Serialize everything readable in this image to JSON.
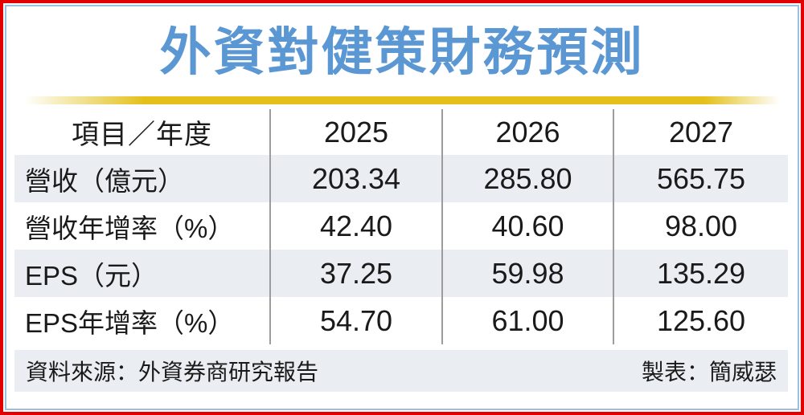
{
  "title": "外資對健策財務預測",
  "table": {
    "header": [
      "項目／年度",
      "2025",
      "2026",
      "2027"
    ],
    "rows": [
      {
        "label": "營收（億元）",
        "values": [
          "203.34",
          "285.80",
          "565.75"
        ]
      },
      {
        "label": "營收年增率（%）",
        "values": [
          "42.40",
          "40.60",
          "98.00"
        ]
      },
      {
        "label": "EPS（元）",
        "values": [
          "37.25",
          "59.98",
          "135.29"
        ]
      },
      {
        "label": "EPS年增率（%）",
        "values": [
          "54.70",
          "61.00",
          "125.60"
        ]
      }
    ]
  },
  "footer": {
    "source": "資料來源：外資券商研究報告",
    "credit": "製表：簡威瑟"
  },
  "colors": {
    "title_blue": "#5B97D3",
    "underline_gold": "#E3C01A",
    "border_red": "#E30000",
    "border_light_blue": "#9DBFDE",
    "stripe_bg": "#EAEEF2",
    "divider_gray": "#9C9C9C"
  },
  "chart_data": {
    "type": "table",
    "title": "外資對健策財務預測",
    "columns": [
      "項目／年度",
      "2025",
      "2026",
      "2027"
    ],
    "rows": [
      [
        "營收（億元）",
        203.34,
        285.8,
        565.75
      ],
      [
        "營收年增率（%）",
        42.4,
        40.6,
        98.0
      ],
      [
        "EPS（元）",
        37.25,
        59.98,
        135.29
      ],
      [
        "EPS年增率（%）",
        54.7,
        61.0,
        125.6
      ]
    ],
    "source_note": "資料來源：外資券商研究報告",
    "credit_note": "製表：簡威瑟",
    "layout": {
      "striped_rows": [
        0,
        2
      ],
      "column_dividers": true,
      "legend": "none"
    }
  }
}
